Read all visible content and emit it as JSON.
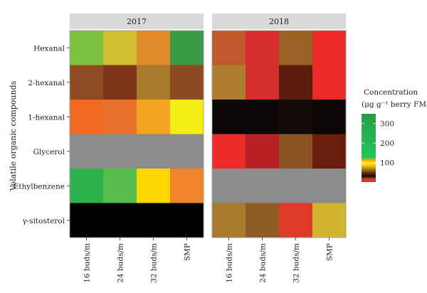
{
  "chart_data": {
    "type": "heatmap",
    "ylabel": "Volatile organic compounds",
    "rows": [
      "Hexanal",
      "2-hexanal",
      "1-hexanal",
      "Glycerol",
      "Ethylbenzene",
      "γ-sitosterol"
    ],
    "columns": [
      "16 buds/m",
      "24 buds/m",
      "32 buds/m",
      "SMP"
    ],
    "panels": [
      {
        "label": "2017",
        "cells": [
          [
            "#7cc142",
            "#d2be30",
            "#de8a2a",
            "#3a9a46"
          ],
          [
            "#8e4b22",
            "#7d3419",
            "#a87a2c",
            "#8c4a20"
          ],
          [
            "#f06a22",
            "#e8702a",
            "#f4a322",
            "#f5ee16"
          ],
          [
            "#8c8c8c",
            "#8c8c8c",
            "#8c8c8c",
            "#8c8c8c"
          ],
          [
            "#2bb24b",
            "#56bc4a",
            "#ffd600",
            "#f2842a"
          ],
          [
            "#000000",
            "#000000",
            "#000000",
            "#000000"
          ]
        ]
      },
      {
        "label": "2018",
        "cells": [
          [
            "#bf5a2c",
            "#d62e2c",
            "#9b6026",
            "#ec2a2a"
          ],
          [
            "#ae7e2e",
            "#d42f2d",
            "#5d1d0d",
            "#ec2a2a"
          ],
          [
            "#0e0707",
            "#0d0707",
            "#140a08",
            "#0b0707"
          ],
          [
            "#ec2b2b",
            "#b82226",
            "#8a5220",
            "#6a1c0e"
          ],
          [
            "#8c8c8c",
            "#8c8c8c",
            "#8c8c8c",
            "#8c8c8c"
          ],
          [
            "#a87a2e",
            "#8f5c26",
            "#de3a2a",
            "#d1b52e"
          ]
        ]
      }
    ],
    "legend": {
      "title_line1": "Concentration",
      "title_line2": "(μg g⁻¹ berry FM)",
      "ticks": [
        100,
        200,
        300
      ],
      "range": [
        0,
        350
      ],
      "position": "right",
      "gradient": [
        {
          "value": 0,
          "color": "#e8222a"
        },
        {
          "value": 15,
          "color": "#c84a2a"
        },
        {
          "value": 30,
          "color": "#1a0a06"
        },
        {
          "value": 50,
          "color": "#6b3a14"
        },
        {
          "value": 75,
          "color": "#d4a020"
        },
        {
          "value": 95,
          "color": "#ffef10"
        },
        {
          "value": 115,
          "color": "#ff9a1a"
        },
        {
          "value": 125,
          "color": "#1fc85a"
        },
        {
          "value": 350,
          "color": "#2e9a48"
        }
      ]
    }
  }
}
